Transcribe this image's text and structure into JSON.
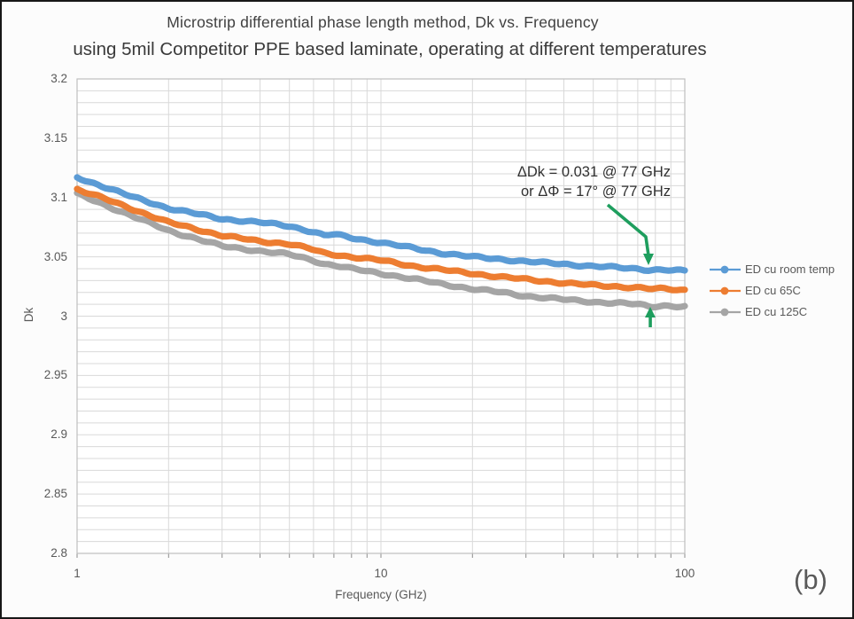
{
  "page": {
    "panel_label": "(b)"
  },
  "chart_data": {
    "type": "line",
    "title": "Microstrip differential phase length method, Dk vs. Frequency",
    "subtitle": "using 5mil Competitor PPE based laminate, operating at different temperatures",
    "xlabel": "Frequency (GHz)",
    "ylabel": "Dk",
    "x_scale": "log",
    "xlim": [
      1,
      100
    ],
    "ylim": [
      2.8,
      3.2
    ],
    "grid": true,
    "legend_position": "right",
    "y_ticks": [
      3.2,
      3.15,
      3.1,
      3.05,
      3,
      2.95,
      2.9,
      2.85,
      2.8
    ],
    "y_tick_labels": [
      "3.2",
      "3.15",
      "3.1",
      "3.05",
      "3",
      "2.95",
      "2.9",
      "2.85",
      "2.8"
    ],
    "x_ticks": [
      1,
      10,
      100
    ],
    "x_tick_labels": [
      "1",
      "10",
      "100"
    ],
    "x": [
      1,
      1.2,
      1.5,
      2,
      2.5,
      3,
      4,
      5,
      6,
      6.5,
      7,
      8,
      10,
      13,
      16,
      20,
      25,
      30,
      40,
      50,
      60,
      70,
      77,
      85,
      100
    ],
    "series": [
      {
        "name": "ED cu room temp",
        "color": "#5B9BD5",
        "values": [
          3.117,
          3.11,
          3.101,
          3.091,
          3.086,
          3.082,
          3.079,
          3.076,
          3.071,
          3.068,
          3.069,
          3.066,
          3.062,
          3.057,
          3.053,
          3.05,
          3.048,
          3.046,
          3.044,
          3.042,
          3.041,
          3.04,
          3.039,
          3.039,
          3.038
        ]
      },
      {
        "name": "ED cu 65C",
        "color": "#ED7D31",
        "values": [
          3.107,
          3.1,
          3.091,
          3.079,
          3.073,
          3.068,
          3.063,
          3.061,
          3.056,
          3.053,
          3.052,
          3.05,
          3.047,
          3.042,
          3.039,
          3.036,
          3.033,
          3.031,
          3.028,
          3.026,
          3.025,
          3.024,
          3.023,
          3.023,
          3.022
        ]
      },
      {
        "name": "ED cu 125C",
        "color": "#A5A5A5",
        "values": [
          3.103,
          3.095,
          3.085,
          3.072,
          3.065,
          3.059,
          3.055,
          3.052,
          3.047,
          3.044,
          3.043,
          3.04,
          3.036,
          3.031,
          3.027,
          3.023,
          3.02,
          3.017,
          3.014,
          3.012,
          3.011,
          3.01,
          3.008,
          3.009,
          3.008
        ]
      }
    ],
    "annotation": {
      "line1": "ΔDk = 0.031 @ 77 GHz",
      "line2": "or ΔΦ = 17° @ 77 GHz",
      "arrow_color": "#1E9E5E",
      "target_ghz": 77,
      "delta_dk": 0.031,
      "delta_phi_deg": 17
    },
    "grid_color": "#d9d9d9",
    "axis_color": "#bfbfbf"
  }
}
